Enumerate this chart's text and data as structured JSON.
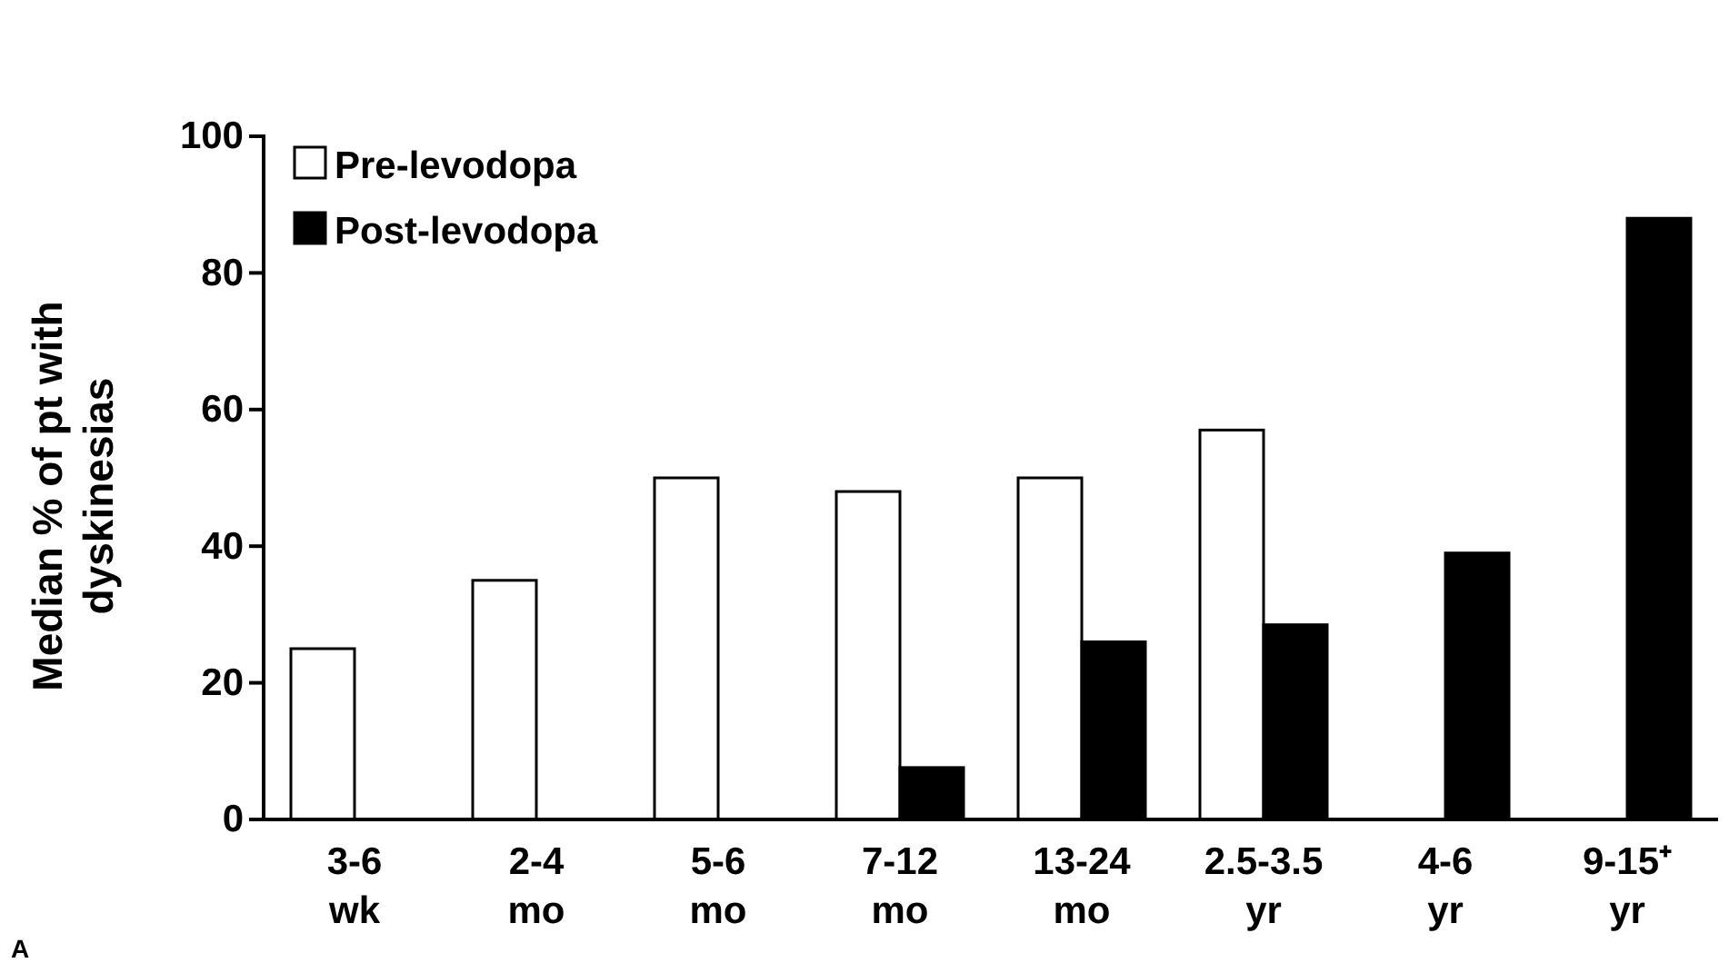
{
  "chart_data": {
    "type": "bar",
    "ylabel": "Median % of pt with dyskinesias",
    "categories": [
      "3-6 wk",
      "2-4 mo",
      "5-6 mo",
      "7-12 mo",
      "13-24 mo",
      "2.5-3.5 yr",
      "4-6 yr",
      "9-15⁺ yr"
    ],
    "series": [
      {
        "name": "Pre-levodopa",
        "color": "#ffffff",
        "values": [
          25,
          35,
          50,
          48,
          50,
          57,
          null,
          null
        ]
      },
      {
        "name": "Post-levodopa",
        "color": "#000000",
        "values": [
          null,
          null,
          null,
          7.6,
          26,
          28.5,
          39,
          88
        ]
      }
    ],
    "ylim": [
      0,
      100
    ],
    "yticks": [
      0,
      20,
      40,
      60,
      80,
      100
    ],
    "legend": "top left",
    "annotations": [
      "A"
    ]
  }
}
